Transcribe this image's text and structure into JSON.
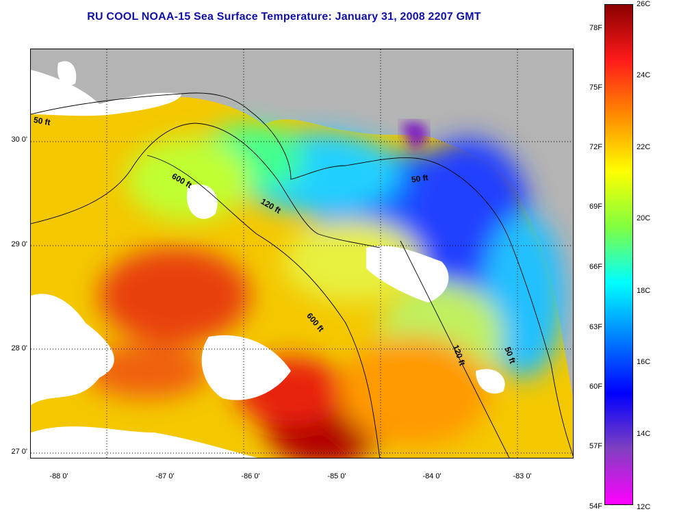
{
  "title": "RU COOL  NOAA-15  Sea Surface Temperature:  January 31, 2008 2207 GMT",
  "lat_ticks": [
    "30 0'",
    "29 0'",
    "28 0'",
    "27 0'"
  ],
  "lon_ticks": [
    "-88 0'",
    "-87 0'",
    "-86 0'",
    "-85 0'",
    "-84 0'",
    "-83 0'"
  ],
  "isobath_labels": [
    "50 ft",
    "600 ft",
    "120 ft",
    "50 ft",
    "600 ft",
    "120 ft",
    "50 ft"
  ],
  "colorbar": {
    "fahrenheit": [
      "78F",
      "75F",
      "72F",
      "69F",
      "66F",
      "63F",
      "60F",
      "57F",
      "54F"
    ],
    "celsius": [
      "26C",
      "24C",
      "22C",
      "20C",
      "18C",
      "16C",
      "14C",
      "12C"
    ],
    "stops": [
      "#8b0000",
      "#ff1a1a",
      "#ff8c00",
      "#ffff00",
      "#80ff40",
      "#00ffff",
      "#0080ff",
      "#0000ff",
      "#8040c0",
      "#ff00ff"
    ]
  },
  "colors": {
    "land": "#b4b4b4",
    "title": "#1010a8"
  }
}
